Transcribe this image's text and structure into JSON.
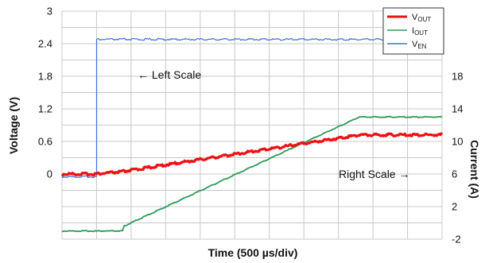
{
  "chart_data": {
    "type": "line",
    "xlabel": "Time (500 µs/div)",
    "ylabel_left": "Voltage (V)",
    "ylabel_right": "Current (A)",
    "left_axis": {
      "ticks": [
        0,
        0.6,
        1.2,
        1.8,
        2.4,
        3
      ],
      "tick_labels": [
        "0",
        "0.6",
        "1.2",
        "1.8",
        "2.4",
        "3"
      ]
    },
    "right_axis": {
      "ticks": [
        -2,
        2,
        6,
        10,
        14,
        18
      ],
      "tick_labels": [
        "-2",
        "2",
        "6",
        "10",
        "14",
        "18"
      ]
    },
    "grid": true,
    "x_divisions": 11,
    "y_divisions": 14,
    "legend": {
      "placement": "top-right",
      "entries": [
        {
          "label": "V",
          "sub": "OUT",
          "color": "#ee1111"
        },
        {
          "label": "I",
          "sub": "OUT",
          "color": "#2e9a5a"
        },
        {
          "label": "V",
          "sub": "EN",
          "color": "#3a70e0"
        }
      ]
    },
    "annotations": {
      "left_scale": "← Left Scale",
      "right_scale": "Right Scale →"
    },
    "series": [
      {
        "name": "VOUT",
        "axis": "left",
        "color": "#ee1111",
        "x": [
          0,
          0.95,
          1.7,
          8.6,
          11
        ],
        "y": [
          0,
          0,
          0.04,
          0.72,
          0.72
        ]
      },
      {
        "name": "IOUT",
        "axis": "right",
        "color": "#2e9a5a",
        "x": [
          0,
          1.75,
          1.8,
          2.3,
          8.6,
          11
        ],
        "y": [
          -1,
          -1,
          -0.4,
          0.6,
          13,
          13
        ]
      },
      {
        "name": "VEN",
        "axis": "left",
        "color": "#3a70e0",
        "x": [
          0,
          1.0,
          1.0,
          11
        ],
        "y": [
          -0.05,
          -0.05,
          2.48,
          2.48
        ]
      }
    ]
  }
}
